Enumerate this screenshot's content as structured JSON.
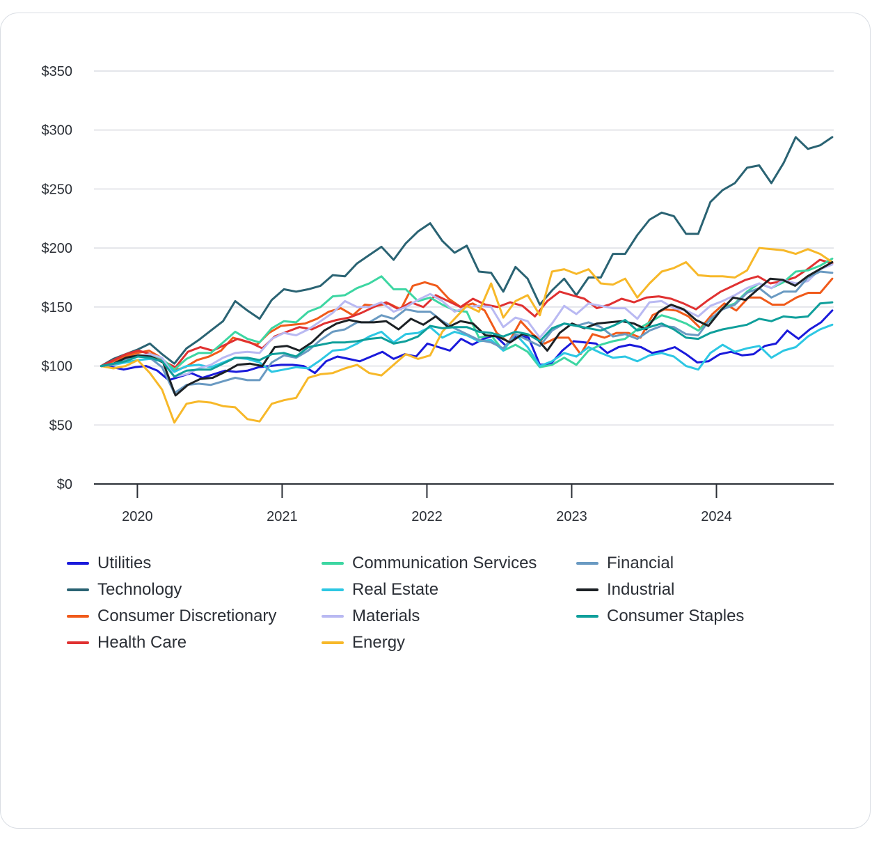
{
  "chart_data": {
    "type": "line",
    "title": "",
    "xlabel": "",
    "ylabel": "",
    "ylim": [
      0,
      350
    ],
    "yticks": [
      0,
      50,
      100,
      150,
      200,
      250,
      300,
      350
    ],
    "ytick_labels": [
      "$0",
      "$50",
      "$100",
      "$150",
      "$200",
      "$250",
      "$300",
      "$350"
    ],
    "xlim": [
      2019.7,
      2024.81
    ],
    "xticks": [
      2020,
      2021,
      2022,
      2023,
      2024
    ],
    "xtick_labels": [
      "2020",
      "2021",
      "2022",
      "2023",
      "2024"
    ],
    "x_start": 2019.75,
    "x_step": 0.0833,
    "grid": true,
    "legend_position": "bottom",
    "series": [
      {
        "name": "Utilities",
        "color": "#1a1adb",
        "values": [
          100,
          99,
          97,
          99,
          100,
          96,
          88,
          91,
          94,
          90,
          93,
          96,
          95,
          96,
          99,
          100,
          101,
          101,
          100,
          94,
          104,
          108,
          106,
          104,
          108,
          112,
          106,
          110,
          108,
          119,
          116,
          113,
          123,
          118,
          123,
          126,
          117,
          126,
          124,
          101,
          102,
          113,
          121,
          120,
          119,
          111,
          116,
          118,
          116,
          111,
          113,
          116,
          110,
          103,
          104,
          110,
          112,
          109,
          110,
          117,
          119,
          130,
          123,
          131,
          137,
          147
        ]
      },
      {
        "name": "Technology",
        "color": "#2a6373",
        "values": [
          100,
          106,
          110,
          114,
          119,
          110,
          102,
          115,
          122,
          130,
          138,
          155,
          147,
          140,
          156,
          165,
          163,
          165,
          168,
          177,
          176,
          187,
          194,
          201,
          190,
          204,
          214,
          221,
          206,
          196,
          202,
          180,
          179,
          163,
          184,
          174,
          152,
          164,
          174,
          160,
          175,
          175,
          195,
          195,
          211,
          224,
          230,
          227,
          212,
          212,
          239,
          249,
          255,
          268,
          270,
          255,
          272,
          294,
          284,
          287,
          294
        ]
      },
      {
        "name": "Consumer Discretionary",
        "color": "#f05a1a",
        "values": [
          100,
          104,
          108,
          111,
          113,
          107,
          96,
          99,
          105,
          108,
          113,
          124,
          121,
          118,
          128,
          134,
          135,
          136,
          140,
          146,
          149,
          143,
          152,
          151,
          153,
          148,
          168,
          171,
          168,
          157,
          150,
          153,
          147,
          128,
          120,
          138,
          127,
          119,
          124,
          124,
          110,
          127,
          124,
          128,
          128,
          124,
          143,
          148,
          147,
          142,
          132,
          144,
          153,
          147,
          158,
          158,
          152,
          152,
          158,
          162,
          162,
          174
        ]
      },
      {
        "name": "Health Care",
        "color": "#e03131",
        "values": [
          100,
          105,
          110,
          113,
          110,
          104,
          99,
          112,
          116,
          113,
          118,
          123,
          120,
          115,
          125,
          129,
          133,
          131,
          136,
          139,
          141,
          145,
          150,
          154,
          148,
          154,
          150,
          160,
          155,
          150,
          157,
          152,
          150,
          154,
          151,
          142,
          155,
          163,
          160,
          157,
          149,
          152,
          157,
          154,
          158,
          159,
          157,
          153,
          148,
          156,
          163,
          168,
          173,
          176,
          170,
          172,
          175,
          182,
          190,
          187
        ]
      },
      {
        "name": "Communication Services",
        "color": "#3dd6a2",
        "values": [
          100,
          101,
          106,
          108,
          110,
          106,
          97,
          106,
          111,
          111,
          120,
          129,
          123,
          120,
          132,
          138,
          137,
          146,
          150,
          159,
          160,
          166,
          170,
          176,
          165,
          165,
          155,
          158,
          152,
          147,
          146,
          124,
          126,
          113,
          118,
          112,
          99,
          101,
          107,
          101,
          113,
          118,
          121,
          123,
          131,
          137,
          143,
          140,
          136,
          130,
          139,
          149,
          153,
          163,
          170,
          166,
          171,
          180,
          181,
          185,
          191
        ]
      },
      {
        "name": "Real Estate",
        "color": "#2dc7e3",
        "values": [
          100,
          101,
          103,
          105,
          106,
          104,
          95,
          100,
          101,
          99,
          103,
          107,
          106,
          103,
          95,
          97,
          99,
          98,
          105,
          113,
          114,
          119,
          125,
          129,
          120,
          127,
          128,
          133,
          124,
          129,
          126,
          121,
          122,
          113,
          127,
          116,
          100,
          104,
          111,
          108,
          116,
          111,
          107,
          108,
          104,
          109,
          111,
          108,
          100,
          97,
          111,
          118,
          112,
          115,
          117,
          107,
          113,
          116,
          125,
          131,
          135
        ]
      },
      {
        "name": "Materials",
        "color": "#b9b9f2",
        "values": [
          100,
          102,
          106,
          108,
          110,
          107,
          91,
          93,
          98,
          101,
          107,
          111,
          112,
          111,
          123,
          128,
          126,
          131,
          138,
          145,
          155,
          150,
          150,
          154,
          146,
          150,
          156,
          161,
          155,
          146,
          150,
          151,
          150,
          133,
          141,
          138,
          124,
          136,
          151,
          144,
          153,
          151,
          149,
          149,
          140,
          154,
          155,
          149,
          147,
          142,
          151,
          155,
          160,
          166,
          170,
          166,
          173,
          170,
          172,
          182,
          186
        ]
      },
      {
        "name": "Energy",
        "color": "#f7b829",
        "values": [
          100,
          98,
          100,
          105,
          94,
          80,
          52,
          68,
          70,
          69,
          66,
          65,
          55,
          53,
          68,
          71,
          73,
          90,
          93,
          94,
          98,
          101,
          94,
          92,
          101,
          110,
          106,
          109,
          129,
          140,
          151,
          146,
          170,
          141,
          155,
          160,
          143,
          180,
          182,
          178,
          182,
          170,
          169,
          174,
          158,
          170,
          180,
          183,
          188,
          177,
          176,
          176,
          175,
          181,
          200,
          199,
          198,
          195,
          199,
          195,
          188
        ]
      },
      {
        "name": "Financial",
        "color": "#6a9ac2",
        "values": [
          100,
          101,
          106,
          109,
          107,
          99,
          77,
          84,
          85,
          84,
          87,
          90,
          88,
          88,
          103,
          109,
          107,
          113,
          122,
          129,
          131,
          137,
          137,
          143,
          140,
          148,
          146,
          146,
          138,
          132,
          127,
          122,
          120,
          115,
          127,
          122,
          117,
          130,
          136,
          134,
          137,
          133,
          125,
          127,
          123,
          130,
          134,
          133,
          127,
          126,
          140,
          148,
          152,
          162,
          166,
          158,
          163,
          163,
          175,
          180,
          179
        ]
      },
      {
        "name": "Industrial",
        "color": "#1c2125",
        "values": [
          100,
          102,
          107,
          109,
          108,
          103,
          75,
          84,
          89,
          90,
          95,
          101,
          102,
          100,
          116,
          117,
          113,
          120,
          130,
          136,
          139,
          137,
          137,
          138,
          131,
          140,
          135,
          142,
          133,
          138,
          136,
          126,
          125,
          120,
          127,
          125,
          113,
          128,
          136,
          132,
          136,
          137,
          138,
          136,
          131,
          146,
          152,
          148,
          139,
          134,
          147,
          158,
          156,
          165,
          174,
          173,
          168,
          176,
          182,
          188
        ]
      },
      {
        "name": "Consumer Staples",
        "color": "#0f9f9b",
        "values": [
          100,
          102,
          104,
          108,
          107,
          104,
          91,
          96,
          97,
          97,
          102,
          107,
          107,
          105,
          110,
          111,
          108,
          116,
          118,
          120,
          120,
          121,
          123,
          124,
          119,
          121,
          125,
          134,
          132,
          133,
          133,
          129,
          128,
          125,
          129,
          127,
          121,
          132,
          136,
          134,
          132,
          130,
          134,
          139,
          130,
          133,
          136,
          131,
          124,
          123,
          128,
          131,
          133,
          135,
          140,
          138,
          142,
          141,
          142,
          153,
          154
        ]
      }
    ]
  }
}
